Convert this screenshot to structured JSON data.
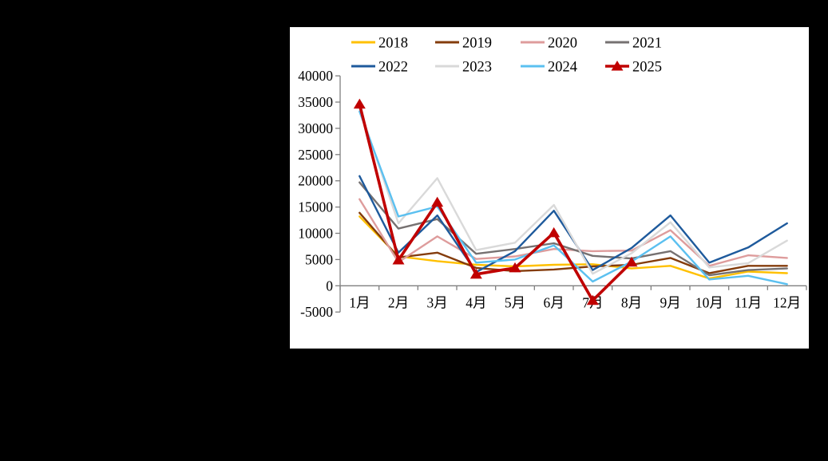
{
  "chart_data": {
    "type": "line",
    "title": "",
    "xlabel": "",
    "ylabel": "",
    "categories": [
      "1月",
      "2月",
      "3月",
      "4月",
      "5月",
      "6月",
      "7月",
      "8月",
      "9月",
      "10月",
      "11月",
      "12月"
    ],
    "ylim": [
      -5000,
      40000
    ],
    "ytick_step": 5000,
    "y_tick_labels": [
      "40000",
      "35000",
      "30000",
      "25000",
      "20000",
      "15000",
      "10000",
      "5000",
      "0",
      "-5000"
    ],
    "grid": "off",
    "legend_position": "top",
    "legend_rows": 2,
    "axis_color": "#7f7f7f",
    "background_color": "#ffffff",
    "canvas_color": "#000000",
    "series": [
      {
        "name": "2018",
        "color": "#FFC000",
        "marker": "none",
        "values": [
          13200,
          5600,
          4700,
          4000,
          3700,
          4000,
          4100,
          3300,
          3800,
          1400,
          2700,
          2400
        ]
      },
      {
        "name": "2019",
        "color": "#843C0C",
        "marker": "none",
        "values": [
          13900,
          5400,
          6300,
          3400,
          2800,
          3100,
          3700,
          4000,
          5300,
          2400,
          3800,
          3800
        ]
      },
      {
        "name": "2020",
        "color": "#DE9C9C",
        "marker": "none",
        "values": [
          16500,
          4500,
          9400,
          5100,
          5600,
          7000,
          6600,
          6700,
          10600,
          3800,
          5800,
          5300
        ]
      },
      {
        "name": "2021",
        "color": "#767171",
        "marker": "none",
        "values": [
          19700,
          10900,
          12700,
          6100,
          7000,
          8100,
          5700,
          5200,
          6600,
          2000,
          3000,
          3300
        ]
      },
      {
        "name": "2022",
        "color": "#1E5A9C",
        "marker": "none",
        "values": [
          20900,
          6300,
          13400,
          2600,
          6600,
          14300,
          3000,
          7200,
          13400,
          4400,
          7300,
          11900
        ]
      },
      {
        "name": "2023",
        "color": "#D9D9D9",
        "marker": "none",
        "values": [
          33800,
          11900,
          20500,
          6800,
          8200,
          15400,
          2300,
          6200,
          12100,
          3500,
          4300,
          8600
        ]
      },
      {
        "name": "2024",
        "color": "#5BC0F0",
        "marker": "none",
        "values": [
          33200,
          13200,
          15100,
          4400,
          5000,
          7700,
          800,
          4600,
          9400,
          1200,
          1900,
          300
        ]
      },
      {
        "name": "2025",
        "color": "#C00000",
        "marker": "triangle",
        "values": [
          34600,
          4900,
          15900,
          2200,
          3400,
          10100,
          -2800,
          4500
        ]
      }
    ]
  }
}
